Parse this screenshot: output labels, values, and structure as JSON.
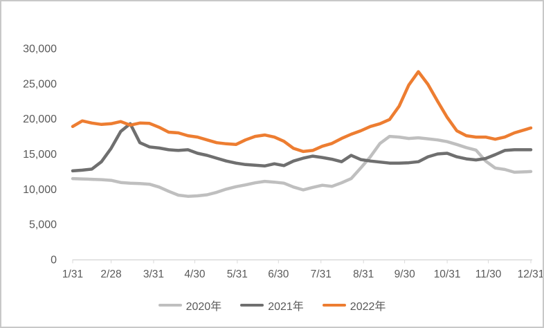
{
  "chart_data": {
    "type": "line",
    "title": "",
    "grid": false,
    "legend_position": "bottom",
    "y_axis": {
      "min": 0,
      "max": 30000,
      "step": 5000,
      "tick_labels": [
        "0",
        "5,000",
        "10,000",
        "15,000",
        "20,000",
        "25,000",
        "30,000"
      ]
    },
    "x_axis": {
      "tick_labels": [
        "1/31",
        "2/28",
        "3/31",
        "4/30",
        "5/31",
        "6/30",
        "7/31",
        "8/31",
        "9/30",
        "10/31",
        "11/30",
        "12/31"
      ]
    },
    "x": [
      "1/31",
      "2/7",
      "2/14",
      "2/21",
      "2/28",
      "3/7",
      "3/14",
      "3/21",
      "3/28",
      "4/4",
      "4/11",
      "4/18",
      "4/25",
      "5/2",
      "5/9",
      "5/16",
      "5/23",
      "5/30",
      "6/6",
      "6/13",
      "6/20",
      "6/27",
      "7/4",
      "7/11",
      "7/18",
      "7/25",
      "8/1",
      "8/8",
      "8/15",
      "8/22",
      "8/29",
      "9/5",
      "9/12",
      "9/19",
      "9/26",
      "10/3",
      "10/10",
      "10/17",
      "10/24",
      "10/31",
      "11/7",
      "11/14",
      "11/21",
      "11/28",
      "12/5",
      "12/12",
      "12/19",
      "12/31"
    ],
    "series": [
      {
        "name": "2020年",
        "color": "#BFBFBF",
        "values": [
          11500,
          11450,
          11400,
          11350,
          11250,
          10950,
          10850,
          10800,
          10700,
          10300,
          9700,
          9150,
          8980,
          9050,
          9200,
          9550,
          10000,
          10350,
          10600,
          10900,
          11100,
          11000,
          10850,
          10300,
          9900,
          10250,
          10550,
          10400,
          10900,
          11500,
          13000,
          14600,
          16500,
          17500,
          17400,
          17200,
          17300,
          17150,
          17000,
          16750,
          16350,
          15900,
          15550,
          14000,
          13000,
          12800,
          12400,
          12500
        ]
      },
      {
        "name": "2021年",
        "color": "#6F6F6F",
        "values": [
          12600,
          12700,
          12850,
          13900,
          15800,
          18200,
          19300,
          16600,
          16000,
          15850,
          15600,
          15500,
          15600,
          15100,
          14800,
          14400,
          14000,
          13700,
          13500,
          13400,
          13300,
          13600,
          13350,
          14000,
          14400,
          14700,
          14500,
          14250,
          13900,
          14800,
          14200,
          14000,
          13850,
          13700,
          13700,
          13750,
          13900,
          14600,
          15000,
          15100,
          14600,
          14300,
          14150,
          14350,
          14900,
          15500,
          15600,
          15600
        ]
      },
      {
        "name": "2022年",
        "color": "#ED7D31",
        "values": [
          18900,
          19700,
          19400,
          19200,
          19300,
          19600,
          19100,
          19400,
          19350,
          18800,
          18100,
          18000,
          17600,
          17400,
          17000,
          16600,
          16450,
          16350,
          17000,
          17500,
          17700,
          17400,
          16800,
          15800,
          15350,
          15500,
          16100,
          16500,
          17200,
          17800,
          18300,
          18900,
          19300,
          19900,
          21800,
          24800,
          26700,
          24900,
          22500,
          20200,
          18300,
          17600,
          17400,
          17400,
          17100,
          17400,
          18000,
          18700
        ]
      }
    ]
  },
  "colors": {
    "background": "#FFFFFF",
    "frame_border": "#C8C8C8",
    "axis_line": "#D9D9D9",
    "axis_text": "#595959",
    "legend_text": "#595959"
  }
}
